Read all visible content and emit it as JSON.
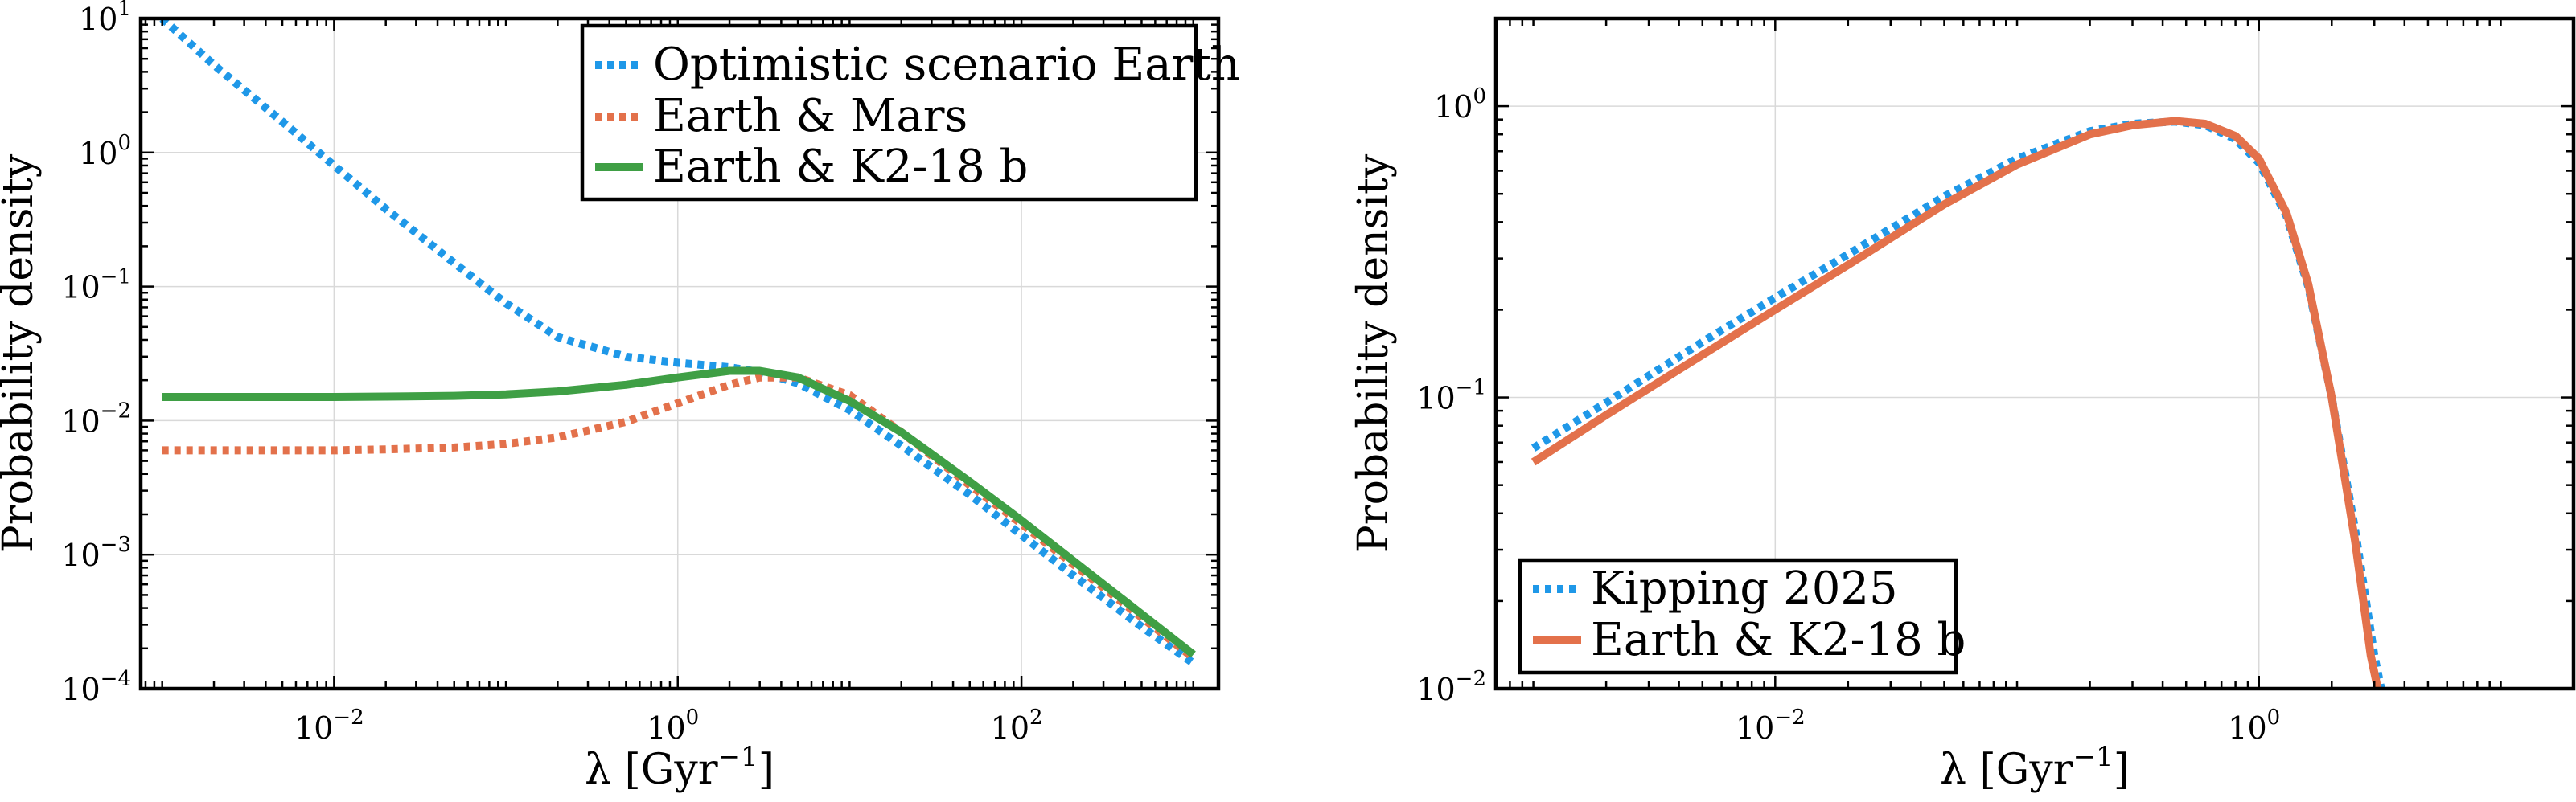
{
  "colors": {
    "blue": "#1f98e8",
    "orange": "#e3714b",
    "green": "#3f9f45"
  },
  "chart_data": [
    {
      "type": "line",
      "xlabel": "λ [Gyr",
      "xlabel_sup": "−1",
      "xlabel_close": "]",
      "ylabel": "Probability density",
      "xscale": "log",
      "yscale": "log",
      "xlim": [
        0.00075,
        1400
      ],
      "ylim": [
        0.0001,
        10
      ],
      "grid": true,
      "legend_position": "top-right",
      "x_ticks": [
        {
          "value": 0.01,
          "base": "10",
          "exp": "−2"
        },
        {
          "value": 1,
          "base": "10",
          "exp": "0"
        },
        {
          "value": 100,
          "base": "10",
          "exp": "2"
        }
      ],
      "y_ticks": [
        {
          "value": 0.0001,
          "base": "10",
          "exp": "−4"
        },
        {
          "value": 0.001,
          "base": "10",
          "exp": "−3"
        },
        {
          "value": 0.01,
          "base": "10",
          "exp": "−2"
        },
        {
          "value": 0.1,
          "base": "10",
          "exp": "−1"
        },
        {
          "value": 1,
          "base": "10",
          "exp": "0"
        },
        {
          "value": 10,
          "base": "10",
          "exp": "1"
        }
      ],
      "series": [
        {
          "name": "Optimistic scenario Earth",
          "style": "dotted",
          "color": "#1f98e8",
          "x": [
            0.001,
            0.002,
            0.005,
            0.01,
            0.02,
            0.05,
            0.1,
            0.2,
            0.5,
            1,
            2,
            3,
            5,
            10,
            20,
            50,
            100,
            200,
            500,
            1000
          ],
          "y": [
            10,
            4.5,
            1.7,
            0.8,
            0.38,
            0.15,
            0.075,
            0.042,
            0.03,
            0.027,
            0.025,
            0.023,
            0.019,
            0.012,
            0.0065,
            0.0028,
            0.0014,
            0.0007,
            0.00029,
            0.000155
          ]
        },
        {
          "name": "Earth & Mars",
          "style": "dotted",
          "color": "#e3714b",
          "x": [
            0.001,
            0.002,
            0.005,
            0.01,
            0.02,
            0.05,
            0.1,
            0.2,
            0.5,
            1,
            2,
            3,
            5,
            10,
            20,
            50,
            100,
            200,
            500,
            1000
          ],
          "y": [
            0.006,
            0.006,
            0.006,
            0.006,
            0.0061,
            0.0063,
            0.0067,
            0.0075,
            0.0098,
            0.0135,
            0.0185,
            0.021,
            0.021,
            0.0155,
            0.0082,
            0.0033,
            0.0017,
            0.00085,
            0.00034,
            0.00017
          ]
        },
        {
          "name": "Earth & K2-18 b",
          "style": "solid",
          "color": "#3f9f45",
          "x": [
            0.001,
            0.002,
            0.005,
            0.01,
            0.02,
            0.05,
            0.1,
            0.2,
            0.5,
            1,
            2,
            3,
            5,
            10,
            20,
            50,
            100,
            200,
            500,
            1000
          ],
          "y": [
            0.015,
            0.015,
            0.015,
            0.015,
            0.0151,
            0.0153,
            0.0157,
            0.0165,
            0.0185,
            0.021,
            0.0235,
            0.0235,
            0.021,
            0.014,
            0.0082,
            0.0035,
            0.0018,
            0.0009,
            0.00036,
            0.00018
          ]
        }
      ]
    },
    {
      "type": "line",
      "xlabel": "λ [Gyr",
      "xlabel_sup": "−1",
      "xlabel_close": "]",
      "ylabel": "Probability density",
      "xscale": "log",
      "yscale": "log",
      "xlim": [
        0.0007,
        20
      ],
      "ylim": [
        0.01,
        2
      ],
      "grid": true,
      "legend_position": "bottom-left",
      "x_ticks": [
        {
          "value": 0.01,
          "base": "10",
          "exp": "−2"
        },
        {
          "value": 1,
          "base": "10",
          "exp": "0"
        }
      ],
      "y_ticks": [
        {
          "value": 0.01,
          "base": "10",
          "exp": "−2"
        },
        {
          "value": 0.1,
          "base": "10",
          "exp": "−1"
        },
        {
          "value": 1,
          "base": "10",
          "exp": "0"
        }
      ],
      "series": [
        {
          "name": "Kipping 2025",
          "style": "dotted",
          "color": "#1f98e8",
          "x": [
            0.001,
            0.002,
            0.005,
            0.01,
            0.02,
            0.05,
            0.1,
            0.2,
            0.3,
            0.45,
            0.6,
            0.8,
            1.0,
            1.3,
            1.6,
            2.0,
            2.5,
            3.0,
            3.2
          ],
          "y": [
            0.067,
            0.096,
            0.155,
            0.22,
            0.31,
            0.49,
            0.66,
            0.82,
            0.87,
            0.885,
            0.86,
            0.77,
            0.64,
            0.42,
            0.24,
            0.1,
            0.035,
            0.013,
            0.01
          ]
        },
        {
          "name": "Earth & K2-18 b",
          "style": "solid",
          "color": "#e3714b",
          "x": [
            0.001,
            0.002,
            0.005,
            0.01,
            0.02,
            0.05,
            0.1,
            0.2,
            0.3,
            0.45,
            0.6,
            0.8,
            1.0,
            1.3,
            1.6,
            2.0,
            2.5,
            2.9,
            3.1
          ],
          "y": [
            0.06,
            0.087,
            0.14,
            0.2,
            0.285,
            0.46,
            0.63,
            0.8,
            0.86,
            0.89,
            0.87,
            0.79,
            0.66,
            0.43,
            0.245,
            0.1,
            0.032,
            0.013,
            0.01
          ]
        }
      ]
    }
  ]
}
